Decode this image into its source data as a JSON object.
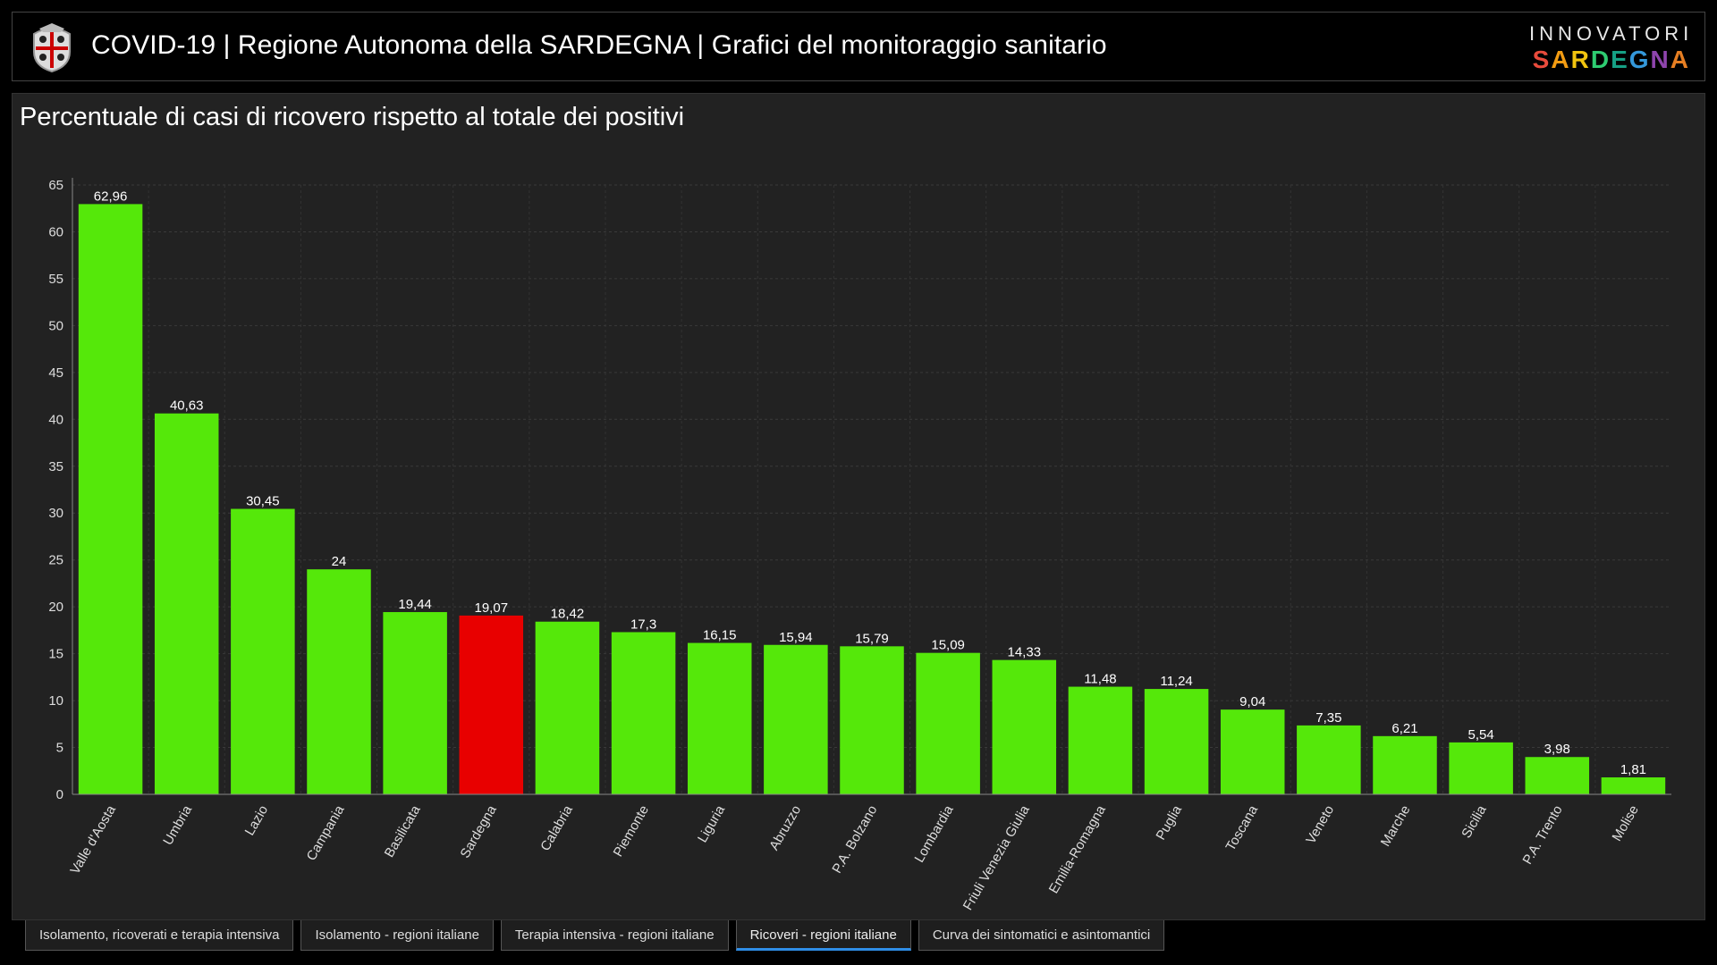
{
  "header": {
    "title": "COVID-19 | Regione Autonoma della SARDEGNA | Grafici del monitoraggio sanitario",
    "brand_top": "INNOVATORI",
    "brand_bottom_letters": [
      "S",
      "A",
      "R",
      "D",
      "E",
      "G",
      "N",
      "A"
    ],
    "brand_colors": [
      "#e94b3c",
      "#f39c12",
      "#f1c40f",
      "#2ecc71",
      "#16a085",
      "#3498db",
      "#8e44ad",
      "#e67e22"
    ]
  },
  "tabs": [
    {
      "label": "Isolamento, ricoverati e terapia intensiva",
      "active": false
    },
    {
      "label": "Isolamento - regioni italiane",
      "active": false
    },
    {
      "label": "Terapia intensiva - regioni italiane",
      "active": false
    },
    {
      "label": "Ricoveri - regioni italiane",
      "active": true
    },
    {
      "label": "Curva dei sintomatici e asintomantici",
      "active": false
    }
  ],
  "chart_data": {
    "type": "bar",
    "title": "Percentuale di casi di ricovero rispetto al totale dei positivi",
    "xlabel": "",
    "ylabel": "",
    "ylim": [
      0,
      65
    ],
    "yticks": [
      "0",
      "5",
      "10",
      "15",
      "20",
      "25",
      "30",
      "35",
      "40",
      "45",
      "50",
      "55",
      "60",
      "65"
    ],
    "grid": true,
    "bar_color": "#55e80a",
    "highlight_color": "#e80000",
    "highlight_category": "Sardegna",
    "categories": [
      "Valle d'Aosta",
      "Umbria",
      "Lazio",
      "Campania",
      "Basilicata",
      "Sardegna",
      "Calabria",
      "Piemonte",
      "Liguria",
      "Abruzzo",
      "P.A. Bolzano",
      "Lombardia",
      "Friuli Venezia Giulia",
      "Emilia-Romagna",
      "Puglia",
      "Toscana",
      "Veneto",
      "Marche",
      "Sicilia",
      "P.A. Trento",
      "Molise"
    ],
    "values": [
      62.96,
      40.63,
      30.45,
      24,
      19.44,
      19.07,
      18.42,
      17.3,
      16.15,
      15.94,
      15.79,
      15.09,
      14.33,
      11.48,
      11.24,
      9.04,
      7.35,
      6.21,
      5.54,
      3.98,
      1.81
    ],
    "value_labels": [
      "62,96",
      "40,63",
      "30,45",
      "24",
      "19,44",
      "19,07",
      "18,42",
      "17,3",
      "16,15",
      "15,94",
      "15,79",
      "15,09",
      "14,33",
      "11,48",
      "11,24",
      "9,04",
      "7,35",
      "6,21",
      "5,54",
      "3,98",
      "1,81"
    ]
  }
}
